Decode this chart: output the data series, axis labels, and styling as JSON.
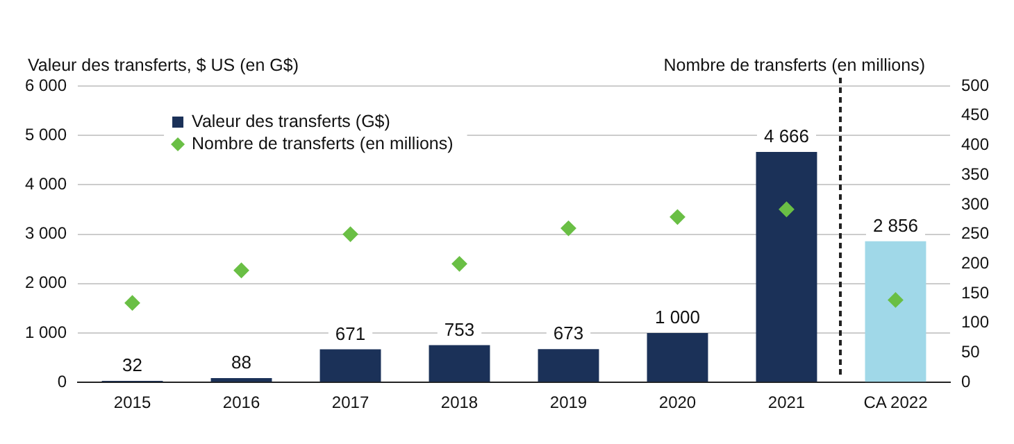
{
  "chart_data": {
    "type": "bar",
    "ylabel": "Valeur des transferts, $ US (en G$)",
    "y2label": "Nombre de transferts (en millions)",
    "categories": [
      "2015",
      "2016",
      "2017",
      "2018",
      "2019",
      "2020",
      "2021",
      "CA 2022"
    ],
    "series": [
      {
        "name": "Valeur des transferts (G$)",
        "colors": [
          "#1b3158",
          "#1b3158",
          "#1b3158",
          "#1b3158",
          "#1b3158",
          "#1b3158",
          "#1b3158",
          "#a0d8e8"
        ],
        "values": [
          32,
          88,
          671,
          753,
          673,
          1000,
          4666,
          2856
        ],
        "value_labels": [
          "32",
          "88",
          "671",
          "753",
          "673",
          "1 000",
          "4 666",
          "2 856"
        ]
      },
      {
        "name": "Nombre de transferts (en millions)",
        "type": "scatter",
        "axis": "y2",
        "color": "#6abf45",
        "marker": "diamond",
        "values": [
          134,
          189,
          250,
          200,
          260,
          279,
          292,
          139
        ]
      }
    ],
    "ylim": [
      0,
      6000
    ],
    "yticks": [
      0,
      {
        "value": 1000,
        "label": "1 000"
      },
      {
        "value": 2000,
        "label": "2 000"
      },
      {
        "value": 3000,
        "label": "3 000"
      },
      {
        "value": 4000,
        "label": "4 000"
      },
      {
        "value": 5000,
        "label": "5 000"
      },
      {
        "value": 6000,
        "label": "6 000"
      }
    ],
    "y2lim": [
      0,
      500
    ],
    "y2ticks": [
      0,
      50,
      100,
      150,
      200,
      250,
      300,
      350,
      400,
      450,
      500
    ],
    "grid": "y",
    "legend": "top left"
  }
}
